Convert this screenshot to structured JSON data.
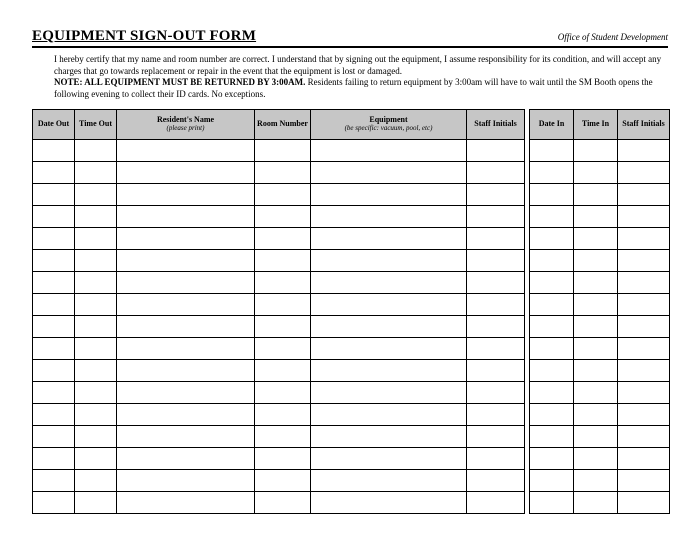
{
  "header": {
    "title": "EQUIPMENT SIGN-OUT FORM",
    "office": "Office of Student Development"
  },
  "certify": {
    "line1": "I hereby certify that my name and room number are correct. I understand that by signing out the equipment, I assume responsibility for its condition, and will accept any charges that go towards replacement or repair in the event that the equipment is lost or damaged.",
    "note_label": "NOTE: ALL EQUIPMENT MUST BE RETURNED BY 3:00AM.",
    "note_rest": " Residents failing to return equipment by 3:00am will have to wait until the SM Booth opens the following evening to collect their ID cards. No exceptions."
  },
  "table_left": {
    "columns": [
      {
        "label": "Date Out",
        "sub": ""
      },
      {
        "label": "Time Out",
        "sub": ""
      },
      {
        "label": "Resident's Name",
        "sub": "(please print)"
      },
      {
        "label": "Room Number",
        "sub": ""
      },
      {
        "label": "Equipment",
        "sub": "(be specific: vacuum, pool, etc)"
      },
      {
        "label": "Staff Initials",
        "sub": ""
      }
    ],
    "row_count": 17
  },
  "table_right": {
    "columns": [
      {
        "label": "Date In",
        "sub": ""
      },
      {
        "label": "Time In",
        "sub": ""
      },
      {
        "label": "Staff Initials",
        "sub": ""
      }
    ],
    "row_count": 17
  },
  "colors": {
    "header_bg": "#c6c6c6",
    "border": "#000000",
    "text": "#000000",
    "page_bg": "#ffffff"
  }
}
